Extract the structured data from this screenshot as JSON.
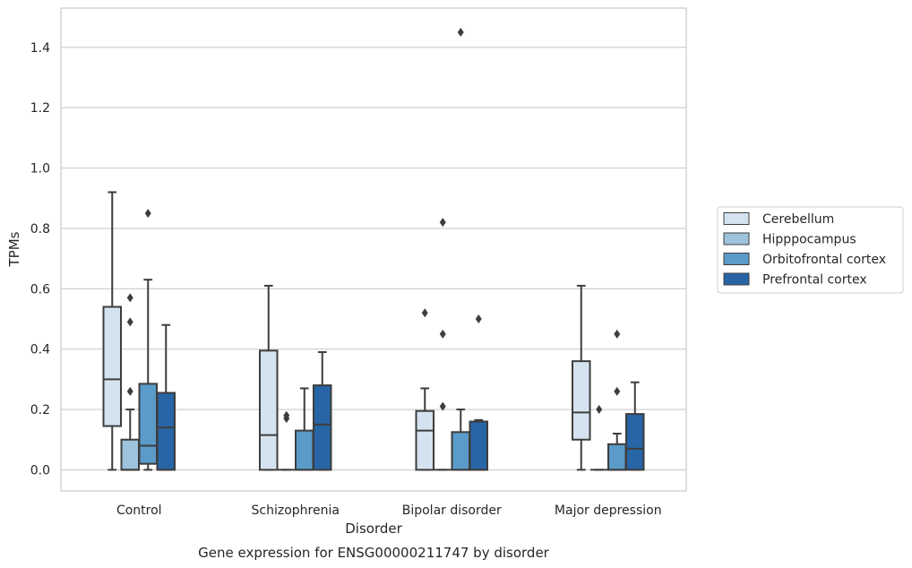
{
  "chart_data": {
    "type": "box",
    "title": "Gene expression for ENSG00000211747 by disorder",
    "xlabel": "Disorder",
    "ylabel": "TPMs",
    "ylim": [
      -0.07,
      1.53
    ],
    "yticks": [
      "0.0",
      "0.2",
      "0.4",
      "0.6",
      "0.8",
      "1.0",
      "1.2",
      "1.4"
    ],
    "grid": true,
    "legend_placement": "right",
    "categories": [
      "Control",
      "Schizophrenia",
      "Bipolar disorder",
      "Major depression"
    ],
    "series": [
      {
        "name": "Cerebellum",
        "color": "#d5e3f1",
        "boxes": [
          {
            "whislo": 0.0,
            "q1": 0.145,
            "med": 0.3,
            "q3": 0.54,
            "whishi": 0.92,
            "fliers": []
          },
          {
            "whislo": 0.0,
            "q1": 0.0,
            "med": 0.115,
            "q3": 0.395,
            "whishi": 0.61,
            "fliers": []
          },
          {
            "whislo": 0.0,
            "q1": 0.0,
            "med": 0.13,
            "q3": 0.195,
            "whishi": 0.27,
            "fliers": [
              0.52
            ]
          },
          {
            "whislo": 0.0,
            "q1": 0.1,
            "med": 0.19,
            "q3": 0.36,
            "whishi": 0.61,
            "fliers": []
          }
        ]
      },
      {
        "name": "Hipppocampus",
        "color": "#9dc3dd",
        "boxes": [
          {
            "whislo": 0.0,
            "q1": 0.0,
            "med": 0.0,
            "q3": 0.1,
            "whishi": 0.2,
            "fliers": [
              0.26,
              0.49,
              0.57
            ]
          },
          {
            "whislo": 0.0,
            "q1": 0.0,
            "med": 0.0,
            "q3": 0.0,
            "whishi": 0.0,
            "fliers": [
              0.17,
              0.18
            ]
          },
          {
            "whislo": 0.0,
            "q1": 0.0,
            "med": 0.0,
            "q3": 0.0,
            "whishi": 0.0,
            "fliers": [
              0.21,
              0.45,
              0.82
            ]
          },
          {
            "whislo": 0.0,
            "q1": 0.0,
            "med": 0.0,
            "q3": 0.0,
            "whishi": 0.0,
            "fliers": [
              0.2
            ]
          }
        ]
      },
      {
        "name": "Orbitofrontal cortex",
        "color": "#5a9bc9",
        "boxes": [
          {
            "whislo": 0.0,
            "q1": 0.02,
            "med": 0.08,
            "q3": 0.285,
            "whishi": 0.63,
            "fliers": [
              0.85
            ]
          },
          {
            "whislo": 0.0,
            "q1": 0.0,
            "med": 0.0,
            "q3": 0.13,
            "whishi": 0.27,
            "fliers": []
          },
          {
            "whislo": 0.0,
            "q1": 0.0,
            "med": 0.0,
            "q3": 0.125,
            "whishi": 0.2,
            "fliers": [
              1.45
            ]
          },
          {
            "whislo": 0.0,
            "q1": 0.0,
            "med": 0.0,
            "q3": 0.085,
            "whishi": 0.12,
            "fliers": [
              0.26,
              0.45
            ]
          }
        ]
      },
      {
        "name": "Prefrontal cortex",
        "color": "#2765a6",
        "boxes": [
          {
            "whislo": 0.0,
            "q1": 0.0,
            "med": 0.14,
            "q3": 0.255,
            "whishi": 0.48,
            "fliers": []
          },
          {
            "whislo": 0.0,
            "q1": 0.0,
            "med": 0.15,
            "q3": 0.28,
            "whishi": 0.39,
            "fliers": []
          },
          {
            "whislo": 0.0,
            "q1": 0.0,
            "med": 0.0,
            "q3": 0.16,
            "whishi": 0.165,
            "fliers": [
              0.5
            ]
          },
          {
            "whislo": 0.0,
            "q1": 0.0,
            "med": 0.07,
            "q3": 0.185,
            "whishi": 0.29,
            "fliers": []
          }
        ]
      }
    ]
  }
}
